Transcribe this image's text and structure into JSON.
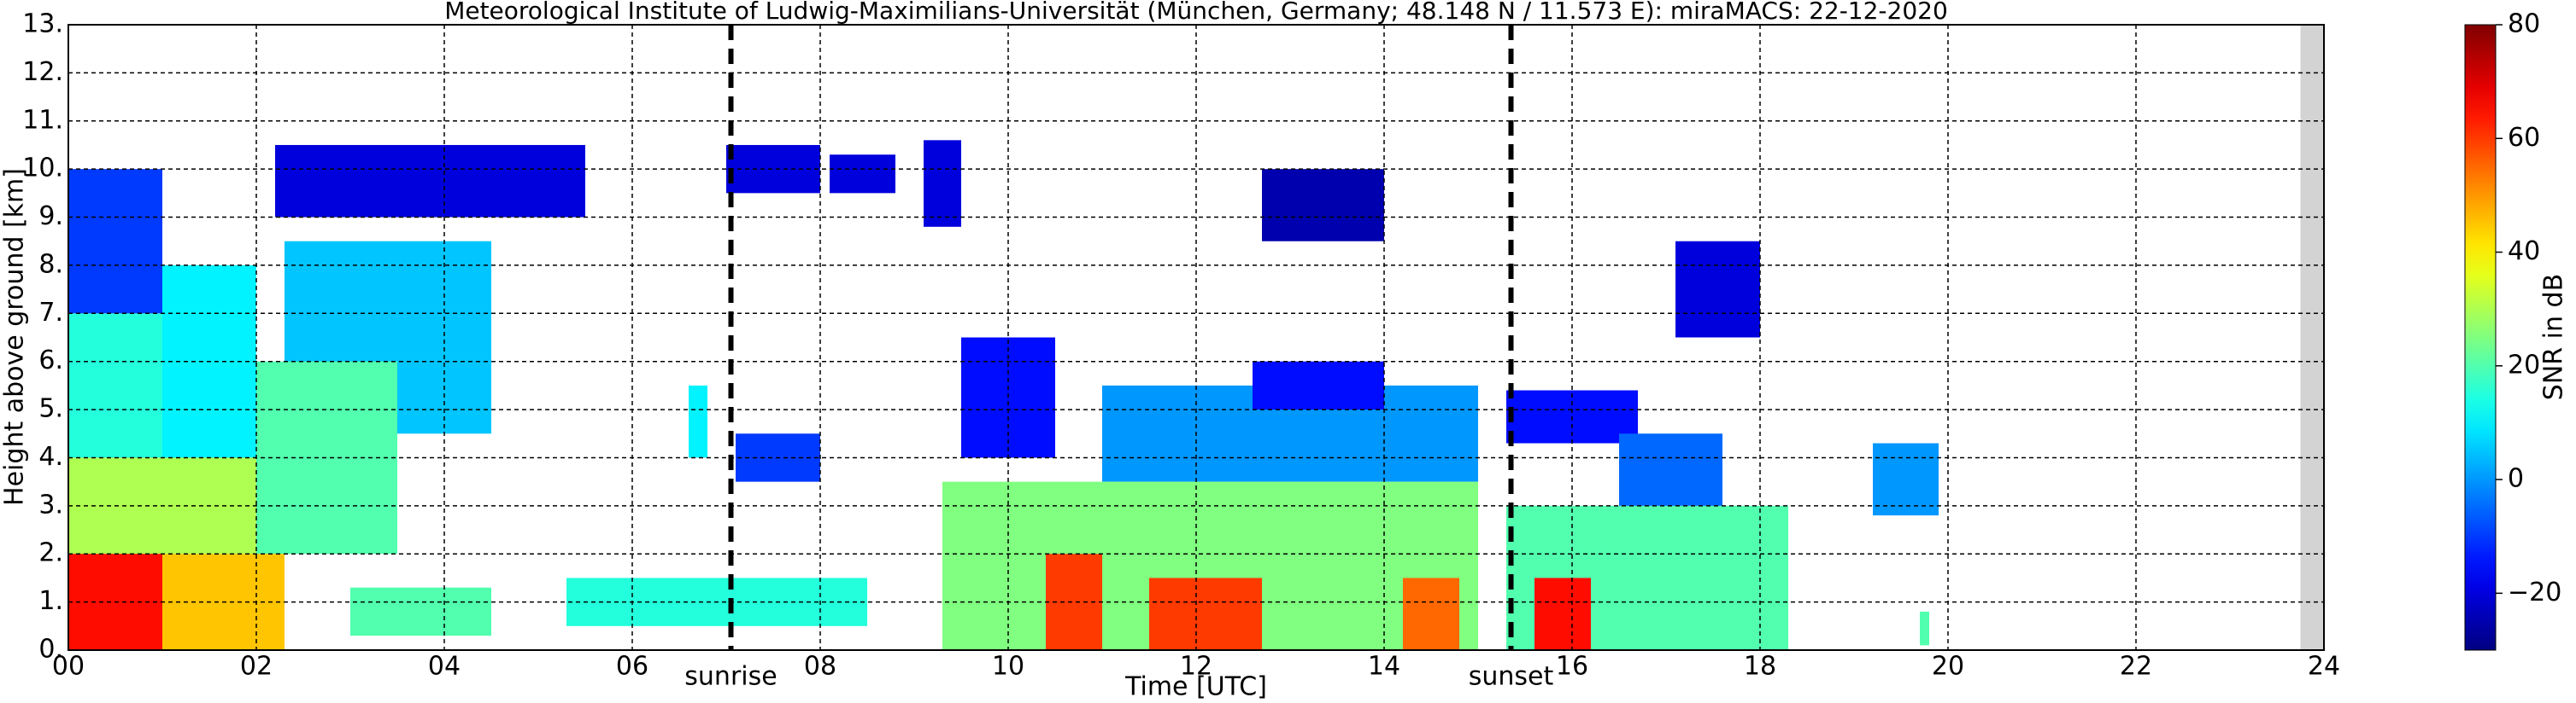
{
  "chart_data": {
    "type": "heatmap",
    "title": "Meteorological Institute of Ludwig-Maximilians-Universität (München, Germany; 48.148 N / 11.573 E):    miraMACS: 22-12-2020",
    "xlabel": "Time [UTC]",
    "ylabel": "Height above ground [km]",
    "xlim": [
      0,
      24
    ],
    "ylim": [
      0,
      13
    ],
    "xticks": [
      {
        "value": 0,
        "label": "00"
      },
      {
        "value": 2,
        "label": "02"
      },
      {
        "value": 4,
        "label": "04"
      },
      {
        "value": 6,
        "label": "06"
      },
      {
        "value": 8,
        "label": "08"
      },
      10,
      12,
      14,
      16,
      18,
      20,
      22,
      24
    ],
    "yticks": [
      {
        "value": 0,
        "label": "0."
      },
      {
        "value": 1,
        "label": "1."
      },
      {
        "value": 2,
        "label": "2."
      },
      {
        "value": 3,
        "label": "3."
      },
      {
        "value": 4,
        "label": "4."
      },
      {
        "value": 5,
        "label": "5."
      },
      {
        "value": 6,
        "label": "6."
      },
      {
        "value": 7,
        "label": "7."
      },
      {
        "value": 8,
        "label": "8."
      },
      {
        "value": 9,
        "label": "9."
      },
      {
        "value": 10,
        "label": "10."
      },
      {
        "value": 11,
        "label": "11."
      },
      {
        "value": 12,
        "label": "12."
      },
      {
        "value": 13,
        "label": "13."
      }
    ],
    "grid": true,
    "colorbar": {
      "label": "SNR in dB",
      "lim": [
        -30,
        80
      ],
      "ticks": [
        {
          "value": -20,
          "label": "−20"
        },
        0,
        20,
        40,
        60,
        80
      ]
    },
    "markers": [
      {
        "x": 7.05,
        "label": "sunrise"
      },
      {
        "x": 15.35,
        "label": "sunset"
      }
    ],
    "no_data": {
      "x": [
        23.75,
        24
      ],
      "color": "#d3d3d3"
    },
    "echoes": [
      {
        "x": [
          0,
          1.5
        ],
        "y": [
          4,
          7
        ],
        "snr": 15
      },
      {
        "x": [
          0,
          1
        ],
        "y": [
          7,
          10
        ],
        "snr": -10
      },
      {
        "x": [
          1,
          2
        ],
        "y": [
          4,
          8
        ],
        "snr": 10
      },
      {
        "x": [
          2.3,
          4.5
        ],
        "y": [
          4.5,
          8.5
        ],
        "snr": 5
      },
      {
        "x": [
          2.2,
          5.5
        ],
        "y": [
          9,
          10.5
        ],
        "snr": -20
      },
      {
        "x": [
          0,
          2.4
        ],
        "y": [
          2,
          4
        ],
        "snr": 30
      },
      {
        "x": [
          2,
          3.5
        ],
        "y": [
          2,
          6
        ],
        "snr": 20
      },
      {
        "x": [
          0,
          2.3
        ],
        "y": [
          0,
          2
        ],
        "snr": 45
      },
      {
        "x": [
          0,
          1
        ],
        "y": [
          0,
          2
        ],
        "snr": 65
      },
      {
        "x": [
          3,
          4.5
        ],
        "y": [
          0.3,
          1.3
        ],
        "snr": 20
      },
      {
        "x": [
          5.3,
          8.5
        ],
        "y": [
          0.5,
          1.5
        ],
        "snr": 15
      },
      {
        "x": [
          6.6,
          6.8
        ],
        "y": [
          4,
          5.5
        ],
        "snr": 10
      },
      {
        "x": [
          7,
          8
        ],
        "y": [
          9.5,
          10.5
        ],
        "snr": -20
      },
      {
        "x": [
          8.1,
          8.8
        ],
        "y": [
          9.5,
          10.3
        ],
        "snr": -20
      },
      {
        "x": [
          9.1,
          9.5
        ],
        "y": [
          8.8,
          10.6
        ],
        "snr": -20
      },
      {
        "x": [
          7.1,
          8
        ],
        "y": [
          3.5,
          4.5
        ],
        "snr": -10
      },
      {
        "x": [
          9.5,
          10.5
        ],
        "y": [
          4,
          6.5
        ],
        "snr": -15
      },
      {
        "x": [
          11,
          15
        ],
        "y": [
          3.5,
          5.5
        ],
        "snr": 0
      },
      {
        "x": [
          12.6,
          14
        ],
        "y": [
          5,
          6
        ],
        "snr": -15
      },
      {
        "x": [
          12.7,
          14
        ],
        "y": [
          8.5,
          10
        ],
        "snr": -25
      },
      {
        "x": [
          9.3,
          15
        ],
        "y": [
          0,
          3.5
        ],
        "snr": 25
      },
      {
        "x": [
          10.4,
          11
        ],
        "y": [
          0,
          2
        ],
        "snr": 60
      },
      {
        "x": [
          11.5,
          12.7
        ],
        "y": [
          0,
          1.5
        ],
        "snr": 60
      },
      {
        "x": [
          14.2,
          14.8
        ],
        "y": [
          0,
          1.5
        ],
        "snr": 55
      },
      {
        "x": [
          15.3,
          18.3
        ],
        "y": [
          0,
          3
        ],
        "snr": 20
      },
      {
        "x": [
          15.6,
          16.2
        ],
        "y": [
          0,
          1.5
        ],
        "snr": 65
      },
      {
        "x": [
          15.3,
          16.7
        ],
        "y": [
          4.3,
          5.4
        ],
        "snr": -15
      },
      {
        "x": [
          16.5,
          17.6
        ],
        "y": [
          3,
          4.5
        ],
        "snr": -5
      },
      {
        "x": [
          17.1,
          18
        ],
        "y": [
          6.5,
          8.5
        ],
        "snr": -20
      },
      {
        "x": [
          19.2,
          19.9
        ],
        "y": [
          2.8,
          4.3
        ],
        "snr": 0
      },
      {
        "x": [
          19.7,
          19.8
        ],
        "y": [
          0.1,
          0.8
        ],
        "snr": 20
      }
    ]
  }
}
